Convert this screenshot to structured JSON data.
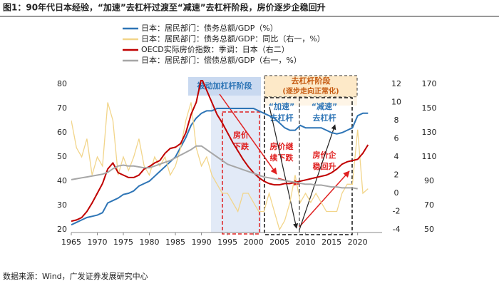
{
  "chart_data": {
    "type": "line",
    "title": "图1：90年代日本经验，“加速”去杠杆过渡至“减速”去杠杆阶段，房价逐步企稳回升",
    "source": "数据来源：Wind，广发证券发展研究中心",
    "x": [
      1965,
      1966,
      1967,
      1968,
      1969,
      1970,
      1971,
      1972,
      1973,
      1974,
      1975,
      1976,
      1977,
      1978,
      1979,
      1980,
      1981,
      1982,
      1983,
      1984,
      1985,
      1986,
      1987,
      1988,
      1989,
      1990,
      1991,
      1992,
      1993,
      1994,
      1995,
      1996,
      1997,
      1998,
      1999,
      2000,
      2001,
      2002,
      2003,
      2004,
      2005,
      2006,
      2007,
      2008,
      2009,
      2010,
      2011,
      2012,
      2013,
      2014,
      2015,
      2016,
      2017,
      2018,
      2019,
      2020,
      2021,
      2022
    ],
    "xlim": [
      1965,
      2024.7
    ],
    "xticks": [
      1965,
      1970,
      1975,
      1980,
      1985,
      1990,
      1995,
      2000,
      2005,
      2010,
      2015,
      2020
    ],
    "ylim": [
      20,
      80
    ],
    "yticks": [
      20,
      30,
      40,
      50,
      60,
      70,
      80
    ],
    "y2lim": [
      -4,
      12
    ],
    "y2ticks": [
      -4,
      -2,
      0,
      2,
      4,
      6,
      8,
      10,
      12
    ],
    "y3lim": [
      50,
      170
    ],
    "y3ticks": [
      50,
      70,
      90,
      110,
      130,
      150,
      170
    ],
    "series": [
      {
        "name": "日本：居民部门：债务总额/GDP（%）",
        "color": "#2e75b6",
        "axis": "y",
        "values": [
          22,
          23,
          24,
          25,
          25.5,
          26,
          27,
          31,
          32,
          33,
          34.5,
          35,
          36,
          38,
          39,
          40,
          42,
          44,
          46,
          48,
          50,
          54,
          58,
          63,
          66,
          68,
          69,
          69,
          70,
          70,
          70,
          70,
          70,
          70,
          70,
          70,
          69,
          68,
          67,
          66,
          64,
          62,
          61,
          61,
          63,
          62,
          62,
          62,
          62,
          61,
          60,
          59.5,
          60,
          61,
          62,
          67,
          68,
          68
        ]
      },
      {
        "name": "日本：居民部门：债务总额/GDP：同比（右一，%）",
        "color": "#f2d58a",
        "axis": "y2",
        "values": [
          8,
          5,
          4,
          6,
          2,
          4,
          3,
          10,
          8,
          2,
          4,
          2.5,
          4,
          6,
          3,
          2,
          4,
          3,
          4,
          2,
          3,
          5,
          8,
          10,
          5,
          3,
          4,
          2,
          1,
          0,
          0,
          -1,
          -2,
          0,
          0,
          -1,
          -2,
          -2,
          0,
          -2,
          -4,
          -3,
          -1,
          2,
          -1,
          0,
          -1,
          0,
          -1,
          -2,
          -2,
          -2,
          0,
          1,
          1,
          7,
          0,
          0.5
        ]
      },
      {
        "name": "OECD实际房价指数：季调：日本（右二）",
        "color": "#c00000",
        "axis": "y3",
        "values": [
          57,
          58,
          60,
          65,
          72,
          80,
          88,
          100,
          105,
          97,
          95,
          93,
          93,
          95,
          100,
          102,
          105,
          107,
          113,
          117,
          118,
          121,
          130,
          145,
          155,
          175,
          165,
          155,
          145,
          138,
          130,
          122,
          115,
          108,
          102,
          97,
          93,
          90,
          88,
          87,
          87,
          88,
          88,
          89,
          90,
          91,
          92,
          93,
          94,
          95,
          97,
          100,
          104,
          106,
          107,
          108,
          113,
          120
        ]
      },
      {
        "name": "日本：居民部门：偿债总额/GDP（右一，%）",
        "color": "#a6a6a6",
        "axis": "y2",
        "values": [
          1.5,
          1.6,
          1.7,
          1.8,
          1.9,
          2.0,
          2.1,
          2.3,
          2.7,
          3.0,
          3.1,
          3.0,
          3.0,
          2.9,
          2.8,
          2.8,
          3.0,
          3.2,
          3.4,
          3.6,
          3.9,
          4.2,
          4.5,
          4.8,
          5.2,
          5.2,
          4.8,
          4.4,
          4.0,
          3.6,
          3.2,
          3.0,
          2.8,
          2.6,
          2.4,
          2.2,
          2.0,
          1.8,
          1.7,
          1.6,
          1.5,
          1.4,
          1.3,
          1.2,
          1.1,
          1.0,
          1.0,
          0.9,
          0.9,
          0.8,
          0.7,
          0.7,
          0.6,
          0.6,
          0.6,
          0.5,
          null,
          null
        ]
      }
    ],
    "annotations": {
      "stage1": "被动加杠杆阶段",
      "stage2": [
        "去杠杆阶段",
        "(逐步走向正常化)"
      ],
      "fast": [
        "“加速”",
        "去杠杆"
      ],
      "slow": [
        "“减速”",
        "去杠杆"
      ],
      "fall": [
        "房价",
        "下跌"
      ],
      "fall2": [
        "房价继",
        "续下跌"
      ],
      "rise": [
        "房价企",
        "稳回升"
      ]
    }
  }
}
